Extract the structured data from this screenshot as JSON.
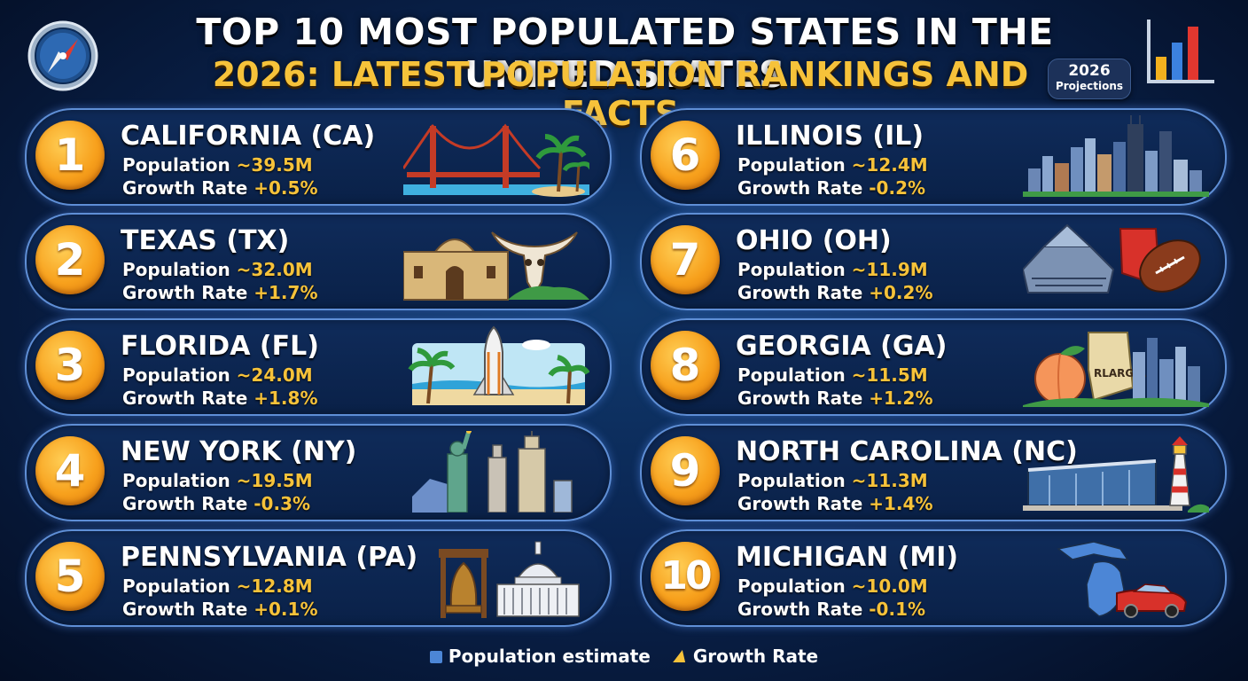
{
  "title": "TOP 10 MOST POPULATED STATES IN THE UNITED STATES",
  "subtitle": "2026: LATEST POPULATION RANKINGS AND FACTS",
  "badge": {
    "year": "2026",
    "label": "Projections"
  },
  "colors": {
    "accent": "#f6c23a",
    "rank_circle": "#f7a01c",
    "card_border": "#5f8fd6",
    "background": "#0a2450"
  },
  "icons": {
    "top_left": "compass-icon",
    "top_right": "bar-chart-icon"
  },
  "states": [
    {
      "rank": "1",
      "name": "CALIFORNIA (CA)",
      "pop_label": "Population",
      "pop": "~39.5M",
      "growth_label": "Growth Rate",
      "growth": "+0.5%",
      "illustration": "golden-gate-bridge-palms"
    },
    {
      "rank": "2",
      "name": "TEXAS (TX)",
      "pop_label": "Population",
      "pop": "~32.0M",
      "growth_label": "Growth Rate",
      "growth": "+1.7%",
      "illustration": "alamo-longhorn-skull"
    },
    {
      "rank": "3",
      "name": "FLORIDA (FL)",
      "pop_label": "Population",
      "pop": "~24.0M",
      "growth_label": "Growth Rate",
      "growth": "+1.8%",
      "illustration": "space-shuttle-beach-palms"
    },
    {
      "rank": "4",
      "name": "NEW YORK (NY)",
      "pop_label": "Population",
      "pop": "~19.5M",
      "growth_label": "Growth Rate",
      "growth": "-0.3%",
      "illustration": "statue-of-liberty-skyline"
    },
    {
      "rank": "5",
      "name": "PENNSYLVANIA (PA)",
      "pop_label": "Population",
      "pop": "~12.8M",
      "growth_label": "Growth Rate",
      "growth": "+0.1%",
      "illustration": "liberty-bell-capitol"
    },
    {
      "rank": "6",
      "name": "ILLINOIS (IL)",
      "pop_label": "Population",
      "pop": "~12.4M",
      "growth_label": "Growth Rate",
      "growth": "-0.2%",
      "illustration": "chicago-skyline"
    },
    {
      "rank": "7",
      "name": "OHIO (OH)",
      "pop_label": "Population",
      "pop": "~11.9M",
      "growth_label": "Growth Rate",
      "growth": "+0.2%",
      "illustration": "stadium-football-state-map"
    },
    {
      "rank": "8",
      "name": "GEORGIA (GA)",
      "pop_label": "Population",
      "pop": "~11.5M",
      "growth_label": "Growth Rate",
      "growth": "+1.2%",
      "illustration": "peach-map-skyline",
      "illustration_text": "RLARGIA"
    },
    {
      "rank": "9",
      "name": "NORTH CAROLINA (NC)",
      "pop_label": "Population",
      "pop": "~11.3M",
      "growth_label": "Growth Rate",
      "growth": "+1.4%",
      "illustration": "building-lighthouse"
    },
    {
      "rank": "10",
      "name": "MICHIGAN (MI)",
      "pop_label": "Population",
      "pop": "~10.0M",
      "growth_label": "Growth Rate",
      "growth": "-0.1%",
      "illustration": "michigan-map-car"
    }
  ],
  "legend": [
    {
      "icon": "square-icon",
      "label": "Population estimate"
    },
    {
      "icon": "triangle-icon",
      "label": "Growth Rate"
    }
  ]
}
